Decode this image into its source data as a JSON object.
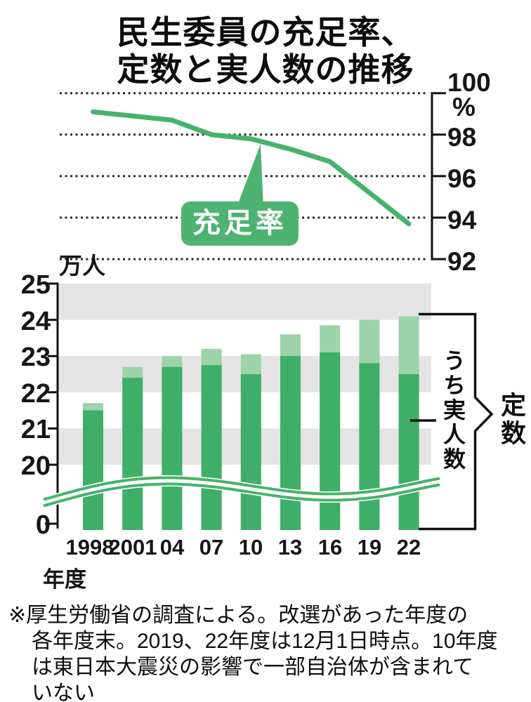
{
  "title": {
    "line1": "民生委員の充足率、",
    "line2": "定数と実人数の推移"
  },
  "top_chart": {
    "unit": "%",
    "y_ticks": [
      "100",
      "98",
      "96",
      "94",
      "92"
    ],
    "series_label": "充足率"
  },
  "bottom_chart": {
    "unit": "万人",
    "y_ticks": [
      "25",
      "24",
      "23",
      "22",
      "21",
      "20",
      "0"
    ],
    "x_ticks": [
      "1998",
      "2001",
      "04",
      "07",
      "10",
      "13",
      "16",
      "19",
      "22"
    ],
    "x_unit": "年度",
    "label_actual": "うち実人数",
    "label_capacity": "定数"
  },
  "footnote": {
    "line1": "※厚生労働省の調査による。改選があった年度の",
    "line2": "各年度末。2019、22年度は12月1日時点。10年度",
    "line3": "は東日本大震災の影響で一部自治体が含まれて",
    "line4": "いない"
  },
  "colors": {
    "green_line": "#47B26C",
    "green_dark": "#3FAE68",
    "green_light": "#9CD3AA",
    "band_gray": "#E4E4E4",
    "ink": "#111111",
    "grid_dot": "#2A2A2A",
    "callout_green": "#4EB271",
    "white": "#FFFFFF"
  },
  "chart_data": [
    {
      "type": "line",
      "title": "充足率",
      "x": [
        "1998",
        "2001",
        "04",
        "07",
        "10",
        "13",
        "16",
        "19",
        "22"
      ],
      "values": [
        99.1,
        98.9,
        98.7,
        98.0,
        97.8,
        97.3,
        96.7,
        95.2,
        93.7
      ],
      "ylabel": "%",
      "ylim": [
        92,
        100
      ],
      "yticks": [
        100,
        98,
        96,
        94,
        92
      ],
      "grid": "dotted-horizontal",
      "legend_position": "callout-on-line"
    },
    {
      "type": "bar",
      "categories": [
        "1998",
        "2001",
        "04",
        "07",
        "10",
        "13",
        "16",
        "19",
        "22"
      ],
      "series": [
        {
          "name": "定数",
          "values": [
            21.7,
            22.7,
            23.0,
            23.2,
            23.05,
            23.6,
            23.85,
            24.0,
            24.1
          ]
        },
        {
          "name": "うち実人数",
          "values": [
            21.5,
            22.4,
            22.7,
            22.75,
            22.5,
            23.0,
            23.1,
            22.8,
            22.5
          ]
        }
      ],
      "bar_style": "overlaid",
      "xlabel": "年度",
      "ylabel": "万人",
      "ylim": [
        0,
        25
      ],
      "yticks": [
        25,
        24,
        23,
        22,
        21,
        20,
        0
      ],
      "axis_break": true,
      "gray_bands": [
        [
          24,
          25
        ],
        [
          22,
          23
        ],
        [
          20,
          21
        ]
      ]
    }
  ]
}
